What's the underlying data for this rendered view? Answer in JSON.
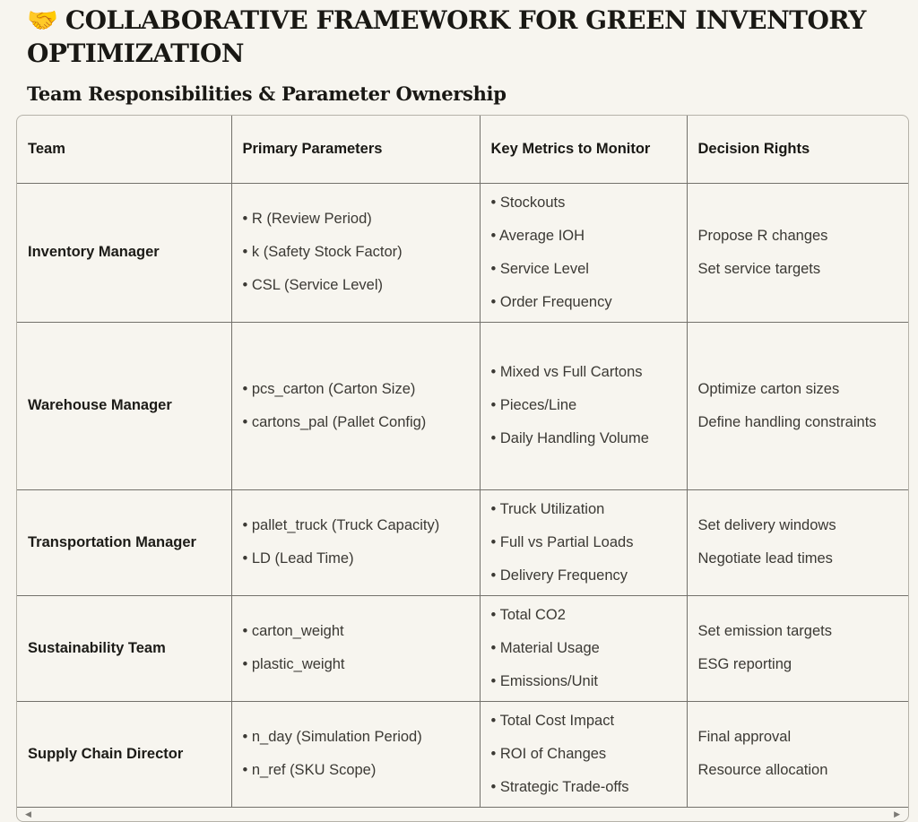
{
  "page": {
    "title_emoji": "🤝",
    "title": "COLLABORATIVE FRAMEWORK FOR GREEN INVENTORY OPTIMIZATION",
    "section_heading": "Team Responsibilities & Parameter Ownership"
  },
  "colors": {
    "page_background": "#f7f5ef",
    "heading_text": "#191814",
    "body_text": "#3b3934",
    "cell_border": "#73716b",
    "container_border": "#b5b2a9",
    "emoji_yellow": "#f2b52a"
  },
  "icons": {
    "scroll_left_arrow": "◀",
    "scroll_right_arrow": "▶"
  },
  "table": {
    "columns": [
      "Team",
      "Primary Parameters",
      "Key Metrics to Monitor",
      "Decision Rights"
    ],
    "rows": [
      {
        "team": "Inventory Manager",
        "parameters": [
          "R (Review Period)",
          "k (Safety Stock Factor)",
          "CSL (Service Level)"
        ],
        "metrics": [
          "Stockouts",
          "Average IOH",
          "Service Level",
          "Order Frequency"
        ],
        "decisions": [
          "Propose R changes",
          "Set service targets"
        ]
      },
      {
        "team": "Warehouse Manager",
        "parameters": [
          "pcs_carton (Carton Size)",
          "cartons_pal (Pallet Config)"
        ],
        "metrics": [
          "Mixed vs Full Cartons",
          "Pieces/Line",
          "Daily Handling Volume"
        ],
        "decisions": [
          "Optimize carton sizes",
          "Define handling constraints"
        ]
      },
      {
        "team": "Transportation Manager",
        "parameters": [
          "pallet_truck (Truck Capacity)",
          "LD (Lead Time)"
        ],
        "metrics": [
          "Truck Utilization",
          "Full vs Partial Loads",
          "Delivery Frequency"
        ],
        "decisions": [
          "Set delivery windows",
          "Negotiate lead times"
        ]
      },
      {
        "team": "Sustainability Team",
        "parameters": [
          "carton_weight",
          "plastic_weight"
        ],
        "metrics": [
          "Total CO2",
          "Material Usage",
          "Emissions/Unit"
        ],
        "decisions": [
          "Set emission targets",
          "ESG reporting"
        ]
      },
      {
        "team": "Supply Chain Director",
        "parameters": [
          "n_day (Simulation Period)",
          "n_ref (SKU Scope)"
        ],
        "metrics": [
          "Total Cost Impact",
          "ROI of Changes",
          "Strategic Trade-offs"
        ],
        "decisions": [
          "Final approval",
          "Resource allocation"
        ]
      }
    ]
  }
}
